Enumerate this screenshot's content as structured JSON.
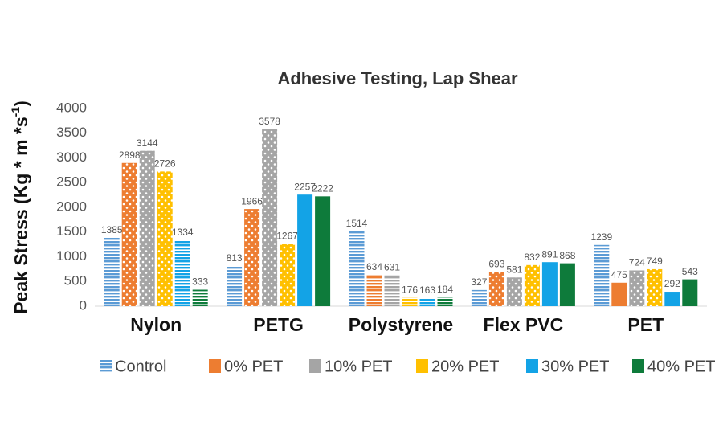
{
  "chart_data": {
    "type": "bar",
    "title": "Adhesive Testing, Lap Shear",
    "y_label": {
      "text": "Peak Stress (Kg * m *s",
      "superscript": "-1",
      "suffix": ")"
    },
    "categories": [
      "Nylon",
      "PETG",
      "Polystyrene",
      "Flex PVC",
      "PET"
    ],
    "ylim": [
      0,
      4000
    ],
    "yticks": [
      0,
      500,
      1000,
      1500,
      2000,
      2500,
      3000,
      3500,
      4000
    ],
    "grid": false,
    "series": [
      {
        "name": "Control",
        "color": "#5b9bd5",
        "values": [
          1385,
          813,
          1514,
          327,
          1239
        ],
        "legend_pattern": "stripes",
        "patterns": [
          "stripes",
          "stripes",
          "stripes",
          "stripes",
          "stripes"
        ]
      },
      {
        "name": "0% PET",
        "color": "#ed7d31",
        "values": [
          2898,
          1966,
          634,
          693,
          475
        ],
        "legend_pattern": "solid",
        "patterns": [
          "dots",
          "dots",
          "stripes",
          "dots",
          "solid"
        ]
      },
      {
        "name": "10% PET",
        "color": "#a5a5a5",
        "values": [
          3144,
          3578,
          631,
          581,
          724
        ],
        "legend_pattern": "solid",
        "patterns": [
          "dots",
          "dots",
          "stripes",
          "dots",
          "dots"
        ]
      },
      {
        "name": "20% PET",
        "color": "#ffc000",
        "values": [
          2726,
          1267,
          176,
          832,
          749
        ],
        "legend_pattern": "solid",
        "patterns": [
          "dots",
          "dots",
          "stripes",
          "dots",
          "dots"
        ]
      },
      {
        "name": "30% PET",
        "color": "#13a3e6",
        "values": [
          1334,
          2257,
          163,
          891,
          292
        ],
        "legend_pattern": "solid",
        "patterns": [
          "stripes",
          "solid",
          "stripes",
          "solid",
          "solid"
        ]
      },
      {
        "name": "40% PET",
        "color": "#0e7b3b",
        "values": [
          333,
          2222,
          184,
          868,
          543
        ],
        "legend_pattern": "solid",
        "patterns": [
          "stripes",
          "solid",
          "stripes",
          "solid",
          "solid"
        ]
      }
    ]
  }
}
